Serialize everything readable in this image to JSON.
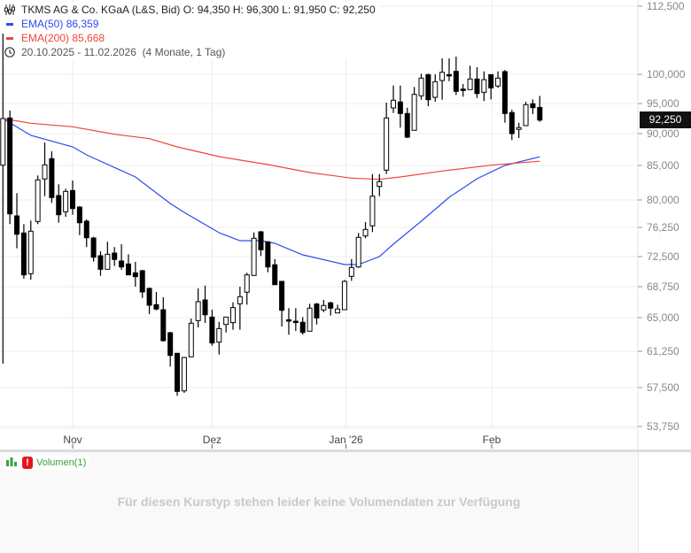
{
  "instrument": {
    "name": "TKMS AG & Co. KGaA (L&S, Bid)",
    "open": "O: 94,350",
    "high": "H: 96,300",
    "low": "L: 91,950",
    "close": "C: 92,250",
    "last_price_label": "92,250"
  },
  "indicators": [
    {
      "label": "EMA(50)",
      "value": "86,359",
      "color": "#2a4cf0"
    },
    {
      "label": "EMA(200)",
      "value": "85,668",
      "color": "#f0443a"
    }
  ],
  "range": {
    "dates": "20.10.2025 - 11.02.2026",
    "span": "(4 Monate, 1 Tag)",
    "icon": "clock-icon"
  },
  "volume_pane": {
    "label": "Volumen(1)",
    "warning_icon": "!",
    "message": "Für diesen Kurstyp stehen leider keine Volumendaten zur Verfügung"
  },
  "chart_data": {
    "type": "candlestick",
    "y_scale": "log",
    "grid": true,
    "y_ticks": [
      112500,
      100000,
      95000,
      90000,
      85000,
      80000,
      76250,
      72500,
      68750,
      65000,
      61250,
      57500,
      53750
    ],
    "y_tick_labels": [
      "112,500",
      "100,000",
      "95,000",
      "90,000",
      "85,000",
      "80,000",
      "76,250",
      "72,500",
      "68,750",
      "65,000",
      "61,250",
      "57,500",
      "53,750"
    ],
    "x_ticks": [
      {
        "label": "Nov",
        "candle_index": 10
      },
      {
        "label": "Dez",
        "candle_index": 30
      },
      {
        "label": "Jan '26",
        "candle_index": 49.2
      },
      {
        "label": "Feb",
        "candle_index": 70.1
      }
    ],
    "candles_ohlc": [
      [
        85040,
        107460,
        59970,
        92500
      ],
      [
        92600,
        93820,
        76700,
        78100
      ],
      [
        77820,
        80990,
        73560,
        75375
      ],
      [
        75530,
        76700,
        69740,
        70220
      ],
      [
        70370,
        77180,
        69630,
        75760
      ],
      [
        77060,
        83550,
        76700,
        82910
      ],
      [
        83040,
        88610,
        80550,
        85100
      ],
      [
        86070,
        87220,
        79600,
        80350
      ],
      [
        80640,
        82270,
        76890,
        77980
      ],
      [
        78390,
        81630,
        77700,
        81240
      ],
      [
        81370,
        82820,
        77980,
        78830
      ],
      [
        79030,
        79150,
        75260,
        76890
      ],
      [
        77100,
        77340,
        73720,
        74920
      ],
      [
        74890,
        75040,
        71870,
        72420
      ],
      [
        72610,
        73180,
        70110,
        70920
      ],
      [
        70920,
        74400,
        70900,
        72800
      ],
      [
        72950,
        73720,
        71320,
        72140
      ],
      [
        71950,
        74090,
        70860,
        71210
      ],
      [
        71580,
        72800,
        70220,
        70220
      ],
      [
        70480,
        71840,
        68750,
        70000
      ],
      [
        70740,
        70850,
        67390,
        68110
      ],
      [
        68540,
        68640,
        65430,
        66500
      ],
      [
        66570,
        68110,
        65890,
        66040
      ],
      [
        65960,
        67470,
        62340,
        62430
      ],
      [
        63320,
        63420,
        59670,
        60820
      ],
      [
        61040,
        61070,
        56710,
        57130
      ],
      [
        57180,
        60670,
        56990,
        60610
      ],
      [
        60670,
        64900,
        60670,
        64380
      ],
      [
        64670,
        68540,
        63910,
        66930
      ],
      [
        67140,
        68890,
        64410,
        65350
      ],
      [
        65070,
        65960,
        61870,
        62170
      ],
      [
        62270,
        64510,
        60910,
        63780
      ],
      [
        64240,
        65100,
        63350,
        65070
      ],
      [
        64440,
        66860,
        63650,
        66220
      ],
      [
        66680,
        68750,
        63650,
        67540
      ],
      [
        68080,
        70480,
        66570,
        70220
      ],
      [
        70150,
        75600,
        70130,
        74850
      ],
      [
        75680,
        75800,
        72580,
        73380
      ],
      [
        74400,
        74470,
        70550,
        71210
      ],
      [
        71480,
        72200,
        68970,
        69000
      ],
      [
        69410,
        69440,
        64010,
        65890
      ],
      [
        64760,
        66150,
        63100,
        64700
      ],
      [
        64600,
        66150,
        63520,
        64480
      ],
      [
        64480,
        65070,
        63100,
        63350
      ],
      [
        63490,
        66680,
        63490,
        66150
      ],
      [
        66640,
        66790,
        64240,
        64970
      ],
      [
        65930,
        67140,
        65680,
        66470
      ],
      [
        66790,
        66930,
        65250,
        66150
      ],
      [
        65570,
        66570,
        65540,
        66040
      ],
      [
        65960,
        69590,
        65930,
        69410
      ],
      [
        70040,
        72200,
        69480,
        71140
      ],
      [
        71210,
        75540,
        71100,
        74970
      ],
      [
        75150,
        76980,
        74850,
        75990
      ],
      [
        76460,
        83760,
        75650,
        80550
      ],
      [
        81960,
        83760,
        80550,
        82650
      ],
      [
        84320,
        95150,
        83760,
        92600
      ],
      [
        94270,
        98080,
        93430,
        95560
      ],
      [
        95260,
        98080,
        90990,
        93340
      ],
      [
        93340,
        94310,
        89310,
        89440
      ],
      [
        90550,
        97830,
        90520,
        96560
      ],
      [
        96320,
        100110,
        95650,
        99350
      ],
      [
        99950,
        100110,
        94560,
        95650
      ],
      [
        96060,
        100000,
        95300,
        98740
      ],
      [
        98940,
        102920,
        95650,
        100380
      ],
      [
        99950,
        102920,
        98830,
        99800
      ],
      [
        100540,
        103250,
        96470,
        97080
      ],
      [
        97470,
        98330,
        96170,
        97230
      ],
      [
        97380,
        101570,
        97350,
        99200
      ],
      [
        99200,
        101300,
        95950,
        96710
      ],
      [
        96920,
        100540,
        95410,
        99090
      ],
      [
        99950,
        100000,
        95710,
        97680
      ],
      [
        98000,
        100540,
        97680,
        99350
      ],
      [
        100490,
        100810,
        91810,
        93340
      ],
      [
        93500,
        93970,
        88990,
        90000
      ],
      [
        90700,
        91810,
        89310,
        91000
      ],
      [
        91330,
        95300,
        91280,
        94810
      ],
      [
        94960,
        95710,
        93240,
        94310
      ],
      [
        94350,
        96300,
        91950,
        92250
      ]
    ],
    "series": [
      {
        "name": "EMA(50)",
        "color": "#2a4cf0",
        "points": [
          [
            0,
            92500
          ],
          [
            4,
            89720
          ],
          [
            10,
            87920
          ],
          [
            12,
            86670
          ],
          [
            19,
            83330
          ],
          [
            24,
            79520
          ],
          [
            26,
            78310
          ],
          [
            31,
            75570
          ],
          [
            34,
            74550
          ],
          [
            37,
            74550
          ],
          [
            39,
            74200
          ],
          [
            43,
            72730
          ],
          [
            49,
            71510
          ],
          [
            51,
            71510
          ],
          [
            54,
            72500
          ],
          [
            56,
            74090
          ],
          [
            60,
            77100
          ],
          [
            64,
            80380
          ],
          [
            68,
            83080
          ],
          [
            72,
            85000
          ],
          [
            77,
            86359
          ]
        ]
      },
      {
        "name": "EMA(200)",
        "color": "#f0443a",
        "points": [
          [
            0,
            92500
          ],
          [
            4,
            91720
          ],
          [
            10,
            91130
          ],
          [
            16,
            89900
          ],
          [
            21,
            89210
          ],
          [
            25,
            87920
          ],
          [
            31,
            86390
          ],
          [
            38,
            85140
          ],
          [
            44,
            83970
          ],
          [
            50,
            83170
          ],
          [
            54,
            82990
          ],
          [
            57,
            83330
          ],
          [
            63,
            84190
          ],
          [
            70,
            85040
          ],
          [
            77,
            85668
          ]
        ]
      }
    ]
  }
}
